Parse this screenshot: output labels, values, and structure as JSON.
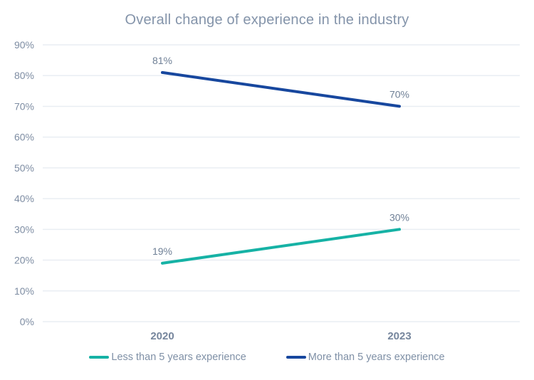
{
  "chart_data": {
    "type": "line",
    "title": "Overall change of experience in the industry",
    "categories": [
      "2020",
      "2023"
    ],
    "series": [
      {
        "name": "Less than 5 years experience",
        "color": "#16b2a5",
        "values": [
          19,
          30
        ],
        "point_labels": [
          "19%",
          "30%"
        ]
      },
      {
        "name": "More than 5 years experience",
        "color": "#17479e",
        "values": [
          81,
          70
        ],
        "point_labels": [
          "81%",
          "70%"
        ]
      }
    ],
    "xlabel": "",
    "ylabel": "",
    "ylim": [
      0,
      90
    ],
    "ytick_values": [
      0,
      10,
      20,
      30,
      40,
      50,
      60,
      70,
      80,
      90
    ],
    "ytick_labels": [
      "0%",
      "10%",
      "20%",
      "30%",
      "40%",
      "50%",
      "60%",
      "70%",
      "80%",
      "90%"
    ],
    "grid": "horizontal",
    "legend_position": "bottom"
  },
  "colors": {
    "title_text": "#8494aa",
    "ytick_text": "#7e8da3",
    "xtick_text": "#76869d",
    "data_label_text": "#6f8096",
    "legend_text": "#7f90a6",
    "gridline": "#e9eef3",
    "background": "#ffffff"
  }
}
